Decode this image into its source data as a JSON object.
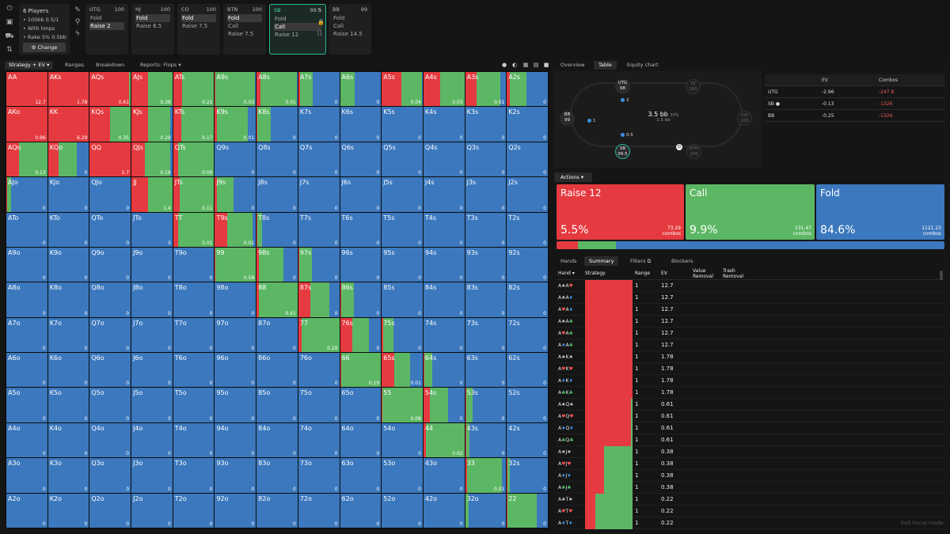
{
  "config": {
    "players": "6 Players",
    "lines": [
      "• 100bb 0.5/1",
      "• With limps",
      "• Rake 5% 0.5bb"
    ],
    "change_label": "Change"
  },
  "positions": [
    {
      "name": "UTG",
      "stack": "100",
      "actions": [
        "Fold",
        "Raise 2"
      ],
      "selected": 1,
      "active": false
    },
    {
      "name": "HJ",
      "stack": "100",
      "actions": [
        "Fold",
        "Raise 6.5"
      ],
      "selected": 0,
      "active": false
    },
    {
      "name": "CO",
      "stack": "100",
      "actions": [
        "Fold",
        "Raise 7.5"
      ],
      "selected": 0,
      "active": false
    },
    {
      "name": "BTN",
      "stack": "100",
      "actions": [
        "Fold",
        "Call",
        "Raise 7.5"
      ],
      "selected": 0,
      "active": false
    },
    {
      "name": "SB",
      "stack": "99.5",
      "actions": [
        "Fold",
        "Call",
        "Raise 12"
      ],
      "selected": 1,
      "active": true
    },
    {
      "name": "BB",
      "stack": "99",
      "actions": [
        "Fold",
        "Call",
        "Raise 14.5"
      ],
      "selected": -1,
      "active": false
    }
  ],
  "left_tabs": {
    "strategy": "Strategy + EV",
    "ranges": "Ranges",
    "breakdown": "Breakdown",
    "reports": "Reports: Flops"
  },
  "right_tabs": {
    "overview": "Overview",
    "table": "Table",
    "equity": "Equity chart"
  },
  "table_view": {
    "pot": "3.5 bb",
    "pot_pct": "30%",
    "pot_sub": "1.5 bb",
    "seats": [
      {
        "name": "UTG",
        "stack": "98",
        "dim": false,
        "active": false
      },
      {
        "name": "HJ",
        "stack": "100",
        "dim": true,
        "active": false
      },
      {
        "name": "CO",
        "stack": "100",
        "dim": true,
        "active": false
      },
      {
        "name": "BTN",
        "stack": "100",
        "dim": true,
        "active": false
      },
      {
        "name": "SB",
        "stack": "99.5",
        "dim": false,
        "active": true
      },
      {
        "name": "BB",
        "stack": "99",
        "dim": false,
        "active": false
      }
    ],
    "chips": {
      "utg": "2",
      "bb": "1",
      "sb": "0.5"
    },
    "dealer": "D"
  },
  "ev_table": {
    "headers": [
      "",
      "EV",
      "Combos"
    ],
    "rows": [
      [
        "UTG",
        "-2.96",
        "-247.8"
      ],
      [
        "SB ●",
        "-0.13",
        "-1326"
      ],
      [
        "BB",
        "-0.25",
        "-1326"
      ]
    ]
  },
  "actions_label": "Actions",
  "action_summary": [
    {
      "name": "Raise 12",
      "pct": "5.5%",
      "combos": "73.29",
      "color": "#e53a3f",
      "frac": 0.055
    },
    {
      "name": "Call",
      "pct": "9.9%",
      "combos": "131.47",
      "color": "#5cb764",
      "frac": 0.099
    },
    {
      "name": "Fold",
      "pct": "84.6%",
      "combos": "1121.23",
      "color": "#3b78be",
      "frac": 0.846
    }
  ],
  "combos_word": "combos",
  "summary_tabs": {
    "hands": "Hands",
    "summary": "Summary",
    "filters": "Filters",
    "blockers": "Blockers"
  },
  "list_headers": {
    "hand": "Hand",
    "strategy": "Strategy",
    "range": "Range",
    "ev": "EV",
    "value_removal": "Value Removal",
    "trash_removal": "Trash Removal"
  },
  "hand_list": [
    {
      "cards": [
        [
          "A",
          "s"
        ],
        [
          "A",
          "h"
        ]
      ],
      "raise": 1,
      "call": 0,
      "range": "1",
      "ev": "12.7"
    },
    {
      "cards": [
        [
          "A",
          "s"
        ],
        [
          "A",
          "d"
        ]
      ],
      "raise": 1,
      "call": 0,
      "range": "1",
      "ev": "12.7"
    },
    {
      "cards": [
        [
          "A",
          "h"
        ],
        [
          "A",
          "d"
        ]
      ],
      "raise": 1,
      "call": 0,
      "range": "1",
      "ev": "12.7"
    },
    {
      "cards": [
        [
          "A",
          "s"
        ],
        [
          "A",
          "c"
        ]
      ],
      "raise": 1,
      "call": 0,
      "range": "1",
      "ev": "12.7"
    },
    {
      "cards": [
        [
          "A",
          "h"
        ],
        [
          "A",
          "c"
        ]
      ],
      "raise": 1,
      "call": 0,
      "range": "1",
      "ev": "12.7"
    },
    {
      "cards": [
        [
          "A",
          "d"
        ],
        [
          "A",
          "c"
        ]
      ],
      "raise": 1,
      "call": 0,
      "range": "1",
      "ev": "12.7"
    },
    {
      "cards": [
        [
          "A",
          "s"
        ],
        [
          "K",
          "s"
        ]
      ],
      "raise": 1,
      "call": 0,
      "range": "1",
      "ev": "1.78"
    },
    {
      "cards": [
        [
          "A",
          "h"
        ],
        [
          "K",
          "h"
        ]
      ],
      "raise": 1,
      "call": 0,
      "range": "1",
      "ev": "1.78"
    },
    {
      "cards": [
        [
          "A",
          "d"
        ],
        [
          "K",
          "d"
        ]
      ],
      "raise": 1,
      "call": 0,
      "range": "1",
      "ev": "1.78"
    },
    {
      "cards": [
        [
          "A",
          "c"
        ],
        [
          "K",
          "c"
        ]
      ],
      "raise": 1,
      "call": 0,
      "range": "1",
      "ev": "1.78"
    },
    {
      "cards": [
        [
          "A",
          "s"
        ],
        [
          "Q",
          "s"
        ]
      ],
      "raise": 0.96,
      "call": 0.04,
      "range": "1",
      "ev": "0.61"
    },
    {
      "cards": [
        [
          "A",
          "h"
        ],
        [
          "Q",
          "h"
        ]
      ],
      "raise": 0.96,
      "call": 0.04,
      "range": "1",
      "ev": "0.61"
    },
    {
      "cards": [
        [
          "A",
          "d"
        ],
        [
          "Q",
          "d"
        ]
      ],
      "raise": 0.96,
      "call": 0.04,
      "range": "1",
      "ev": "0.61"
    },
    {
      "cards": [
        [
          "A",
          "c"
        ],
        [
          "Q",
          "c"
        ]
      ],
      "raise": 0.96,
      "call": 0.04,
      "range": "1",
      "ev": "0.61"
    },
    {
      "cards": [
        [
          "A",
          "s"
        ],
        [
          "J",
          "s"
        ]
      ],
      "raise": 0.4,
      "call": 0.6,
      "range": "1",
      "ev": "0.38"
    },
    {
      "cards": [
        [
          "A",
          "h"
        ],
        [
          "J",
          "h"
        ]
      ],
      "raise": 0.4,
      "call": 0.6,
      "range": "1",
      "ev": "0.38"
    },
    {
      "cards": [
        [
          "A",
          "d"
        ],
        [
          "J",
          "d"
        ]
      ],
      "raise": 0.4,
      "call": 0.6,
      "range": "1",
      "ev": "0.38"
    },
    {
      "cards": [
        [
          "A",
          "c"
        ],
        [
          "J",
          "c"
        ]
      ],
      "raise": 0.4,
      "call": 0.6,
      "range": "1",
      "ev": "0.38"
    },
    {
      "cards": [
        [
          "A",
          "s"
        ],
        [
          "T",
          "s"
        ]
      ],
      "raise": 0.22,
      "call": 0.78,
      "range": "1",
      "ev": "0.22"
    },
    {
      "cards": [
        [
          "A",
          "h"
        ],
        [
          "T",
          "h"
        ]
      ],
      "raise": 0.22,
      "call": 0.78,
      "range": "1",
      "ev": "0.22"
    },
    {
      "cards": [
        [
          "A",
          "d"
        ],
        [
          "T",
          "d"
        ]
      ],
      "raise": 0.22,
      "call": 0.78,
      "range": "1",
      "ev": "0.22"
    }
  ],
  "grid": [
    [
      [
        "AA",
        1,
        0,
        "12.7"
      ],
      [
        "AKs",
        1,
        0,
        "1.78"
      ],
      [
        "AQs",
        0.96,
        0.04,
        "0.61"
      ],
      [
        "AJs",
        0.4,
        0.6,
        "0.38"
      ],
      [
        "ATs",
        0.22,
        0.78,
        "0.22"
      ],
      [
        "A9s",
        0.02,
        0.96,
        "0.03"
      ],
      [
        "A8s",
        0.1,
        0.88,
        "0.01"
      ],
      [
        "A7s",
        0.05,
        0.3,
        "0"
      ],
      [
        "A6s",
        0,
        0.35,
        "0"
      ],
      [
        "A5s",
        0.48,
        0.5,
        "0.04"
      ],
      [
        "A4s",
        0.4,
        0.6,
        "0.03"
      ],
      [
        "A3s",
        0.28,
        0.58,
        "0.01"
      ],
      [
        "A2s",
        0.08,
        0.4,
        "0"
      ]
    ],
    [
      [
        "AKo",
        1,
        0,
        "0.96"
      ],
      [
        "KK",
        1,
        0,
        "6.29"
      ],
      [
        "KQs",
        0.5,
        0.5,
        "0.35"
      ],
      [
        "KJs",
        0.4,
        0.55,
        "0.29"
      ],
      [
        "KTs",
        0.2,
        0.8,
        "0.17"
      ],
      [
        "K9s",
        0.05,
        0.75,
        "0.01"
      ],
      [
        "K8s",
        0.02,
        0.32,
        "0"
      ],
      [
        "K7s",
        0,
        0,
        "0"
      ],
      [
        "K6s",
        0,
        0,
        "0"
      ],
      [
        "K5s",
        0,
        0,
        "0"
      ],
      [
        "K4s",
        0,
        0,
        "0"
      ],
      [
        "K3s",
        0,
        0,
        "0"
      ],
      [
        "K2s",
        0,
        0,
        "0"
      ]
    ],
    [
      [
        "AQo",
        0.3,
        0.7,
        "0.13"
      ],
      [
        "KQo",
        0.25,
        0.45,
        "0"
      ],
      [
        "QQ",
        1,
        0,
        "2.7"
      ],
      [
        "QJs",
        0.32,
        0.63,
        "0.18"
      ],
      [
        "QTs",
        0.12,
        0.88,
        "0.09"
      ],
      [
        "Q9s",
        0,
        0,
        "0"
      ],
      [
        "Q8s",
        0,
        0,
        "0"
      ],
      [
        "Q7s",
        0,
        0,
        "0"
      ],
      [
        "Q6s",
        0,
        0,
        "0"
      ],
      [
        "Q5s",
        0,
        0,
        "0"
      ],
      [
        "Q4s",
        0,
        0,
        "0"
      ],
      [
        "Q3s",
        0,
        0,
        "0"
      ],
      [
        "Q2s",
        0,
        0,
        "0"
      ]
    ],
    [
      [
        "AJo",
        0.02,
        0.1,
        "0"
      ],
      [
        "KJo",
        0,
        0,
        "0"
      ],
      [
        "QJo",
        0,
        0,
        "0"
      ],
      [
        "JJ",
        0.4,
        0.6,
        "1.4"
      ],
      [
        "JTs",
        0.15,
        0.85,
        "0.11"
      ],
      [
        "J9s",
        0.05,
        0.4,
        "0"
      ],
      [
        "J8s",
        0,
        0,
        "0"
      ],
      [
        "J7s",
        0,
        0,
        "0"
      ],
      [
        "J6s",
        0,
        0,
        "0"
      ],
      [
        "J5s",
        0,
        0,
        "0"
      ],
      [
        "J4s",
        0,
        0,
        "0"
      ],
      [
        "J3s",
        0,
        0,
        "0"
      ],
      [
        "J2s",
        0,
        0,
        "0"
      ]
    ],
    [
      [
        "ATo",
        0,
        0,
        "0"
      ],
      [
        "KTo",
        0,
        0,
        "0"
      ],
      [
        "QTo",
        0,
        0,
        "0"
      ],
      [
        "JTo",
        0,
        0,
        "0"
      ],
      [
        "TT",
        0.12,
        0.88,
        "0.01"
      ],
      [
        "T9s",
        0.3,
        0.62,
        "0.01"
      ],
      [
        "T8s",
        0.02,
        0.12,
        "0"
      ],
      [
        "T7s",
        0,
        0,
        "0"
      ],
      [
        "T6s",
        0,
        0,
        "0"
      ],
      [
        "T5s",
        0,
        0,
        "0"
      ],
      [
        "T4s",
        0,
        0,
        "0"
      ],
      [
        "T3s",
        0,
        0,
        "0"
      ],
      [
        "T2s",
        0,
        0,
        "0"
      ]
    ],
    [
      [
        "A9o",
        0,
        0,
        "0"
      ],
      [
        "K9o",
        0,
        0,
        "0"
      ],
      [
        "Q9o",
        0,
        0,
        "0"
      ],
      [
        "J9o",
        0,
        0,
        "0"
      ],
      [
        "T9o",
        0,
        0,
        "0"
      ],
      [
        "99",
        0.02,
        0.98,
        "0.58"
      ],
      [
        "98s",
        0.06,
        0.6,
        "0"
      ],
      [
        "97s",
        0.03,
        0.3,
        "0"
      ],
      [
        "96s",
        0,
        0,
        "0"
      ],
      [
        "95s",
        0,
        0,
        "0"
      ],
      [
        "94s",
        0,
        0,
        "0"
      ],
      [
        "93s",
        0,
        0,
        "0"
      ],
      [
        "92s",
        0,
        0,
        "0"
      ]
    ],
    [
      [
        "A8o",
        0,
        0,
        "0"
      ],
      [
        "K8o",
        0,
        0,
        "0"
      ],
      [
        "Q8o",
        0,
        0,
        "0"
      ],
      [
        "J8o",
        0,
        0,
        "0"
      ],
      [
        "T8o",
        0,
        0,
        "0"
      ],
      [
        "98o",
        0,
        0,
        "0"
      ],
      [
        "88",
        0.05,
        0.95,
        "0.41"
      ],
      [
        "87s",
        0.3,
        0.45,
        "0"
      ],
      [
        "86s",
        0.03,
        0.3,
        "0"
      ],
      [
        "85s",
        0,
        0,
        "0"
      ],
      [
        "84s",
        0,
        0,
        "0"
      ],
      [
        "83s",
        0,
        0,
        "0"
      ],
      [
        "82s",
        0,
        0,
        "0"
      ]
    ],
    [
      [
        "A7o",
        0,
        0,
        "0"
      ],
      [
        "K7o",
        0,
        0,
        "0"
      ],
      [
        "Q7o",
        0,
        0,
        "0"
      ],
      [
        "J7o",
        0,
        0,
        "0"
      ],
      [
        "T7o",
        0,
        0,
        "0"
      ],
      [
        "97o",
        0,
        0,
        "0"
      ],
      [
        "87o",
        0,
        0,
        "0"
      ],
      [
        "77",
        0.08,
        0.92,
        "0.28"
      ],
      [
        "76s",
        0.3,
        0.4,
        "0"
      ],
      [
        "75s",
        0.03,
        0.25,
        "0"
      ],
      [
        "74s",
        0,
        0,
        "0"
      ],
      [
        "73s",
        0,
        0,
        "0"
      ],
      [
        "72s",
        0,
        0,
        "0"
      ]
    ],
    [
      [
        "A6o",
        0,
        0,
        "0"
      ],
      [
        "K6o",
        0,
        0,
        "0"
      ],
      [
        "Q6o",
        0,
        0,
        "0"
      ],
      [
        "J6o",
        0,
        0,
        "0"
      ],
      [
        "T6o",
        0,
        0,
        "0"
      ],
      [
        "96o",
        0,
        0,
        "0"
      ],
      [
        "86o",
        0,
        0,
        "0"
      ],
      [
        "76o",
        0,
        0,
        "0"
      ],
      [
        "66",
        0.02,
        0.98,
        "0.19"
      ],
      [
        "65s",
        0.3,
        0.4,
        "0.01"
      ],
      [
        "64s",
        0.02,
        0.2,
        "0"
      ],
      [
        "63s",
        0,
        0,
        "0"
      ],
      [
        "62s",
        0,
        0,
        "0"
      ]
    ],
    [
      [
        "A5o",
        0,
        0,
        "0"
      ],
      [
        "K5o",
        0,
        0,
        "0"
      ],
      [
        "Q5o",
        0,
        0,
        "0"
      ],
      [
        "J5o",
        0,
        0,
        "0"
      ],
      [
        "T5o",
        0,
        0,
        "0"
      ],
      [
        "95o",
        0,
        0,
        "0"
      ],
      [
        "85o",
        0,
        0,
        "0"
      ],
      [
        "75o",
        0,
        0,
        "0"
      ],
      [
        "65o",
        0,
        0,
        "0"
      ],
      [
        "55",
        0.02,
        0.98,
        "0.08"
      ],
      [
        "54s",
        0.15,
        0.45,
        "0"
      ],
      [
        "53s",
        0.03,
        0.15,
        "0"
      ],
      [
        "52s",
        0,
        0,
        "0"
      ]
    ],
    [
      [
        "A4o",
        0,
        0,
        "0"
      ],
      [
        "K4o",
        0,
        0,
        "0"
      ],
      [
        "Q4o",
        0,
        0,
        "0"
      ],
      [
        "J4o",
        0,
        0,
        "0"
      ],
      [
        "T4o",
        0,
        0,
        "0"
      ],
      [
        "94o",
        0,
        0,
        "0"
      ],
      [
        "84o",
        0,
        0,
        "0"
      ],
      [
        "74o",
        0,
        0,
        "0"
      ],
      [
        "64o",
        0,
        0,
        "0"
      ],
      [
        "54o",
        0,
        0,
        "0"
      ],
      [
        "44",
        0.05,
        0.95,
        "0.02"
      ],
      [
        "43s",
        0.02,
        0.08,
        "0"
      ],
      [
        "42s",
        0,
        0,
        "0"
      ]
    ],
    [
      [
        "A3o",
        0,
        0,
        "0"
      ],
      [
        "K3o",
        0,
        0,
        "0"
      ],
      [
        "Q3o",
        0,
        0,
        "0"
      ],
      [
        "J3o",
        0,
        0,
        "0"
      ],
      [
        "T3o",
        0,
        0,
        "0"
      ],
      [
        "93o",
        0,
        0,
        "0"
      ],
      [
        "83o",
        0,
        0,
        "0"
      ],
      [
        "73o",
        0,
        0,
        "0"
      ],
      [
        "63o",
        0,
        0,
        "0"
      ],
      [
        "53o",
        0,
        0,
        "0"
      ],
      [
        "43o",
        0,
        0,
        "0"
      ],
      [
        "33",
        0.05,
        0.85,
        "0.01"
      ],
      [
        "32s",
        0.02,
        0.05,
        "0"
      ]
    ],
    [
      [
        "A2o",
        0,
        0,
        "0"
      ],
      [
        "K2o",
        0,
        0,
        "0"
      ],
      [
        "Q2o",
        0,
        0,
        "0"
      ],
      [
        "J2o",
        0,
        0,
        "0"
      ],
      [
        "T2o",
        0,
        0,
        "0"
      ],
      [
        "92o",
        0,
        0,
        "0"
      ],
      [
        "82o",
        0,
        0,
        "0"
      ],
      [
        "72o",
        0,
        0,
        "0"
      ],
      [
        "62o",
        0,
        0,
        "0"
      ],
      [
        "52o",
        0,
        0,
        "0"
      ],
      [
        "42o",
        0,
        0,
        "0"
      ],
      [
        "32o",
        0,
        0.08,
        "0"
      ],
      [
        "22",
        0.02,
        0.7,
        "0"
      ]
    ]
  ],
  "suit_glyphs": {
    "s": "♠",
    "h": "♥",
    "d": "♦",
    "c": "♣"
  },
  "exit_focus": "Exit Focus mode",
  "colors": {
    "raise": "#e53a3f",
    "call": "#5cb764",
    "fold": "#3b78be",
    "accent": "#27b99a"
  }
}
